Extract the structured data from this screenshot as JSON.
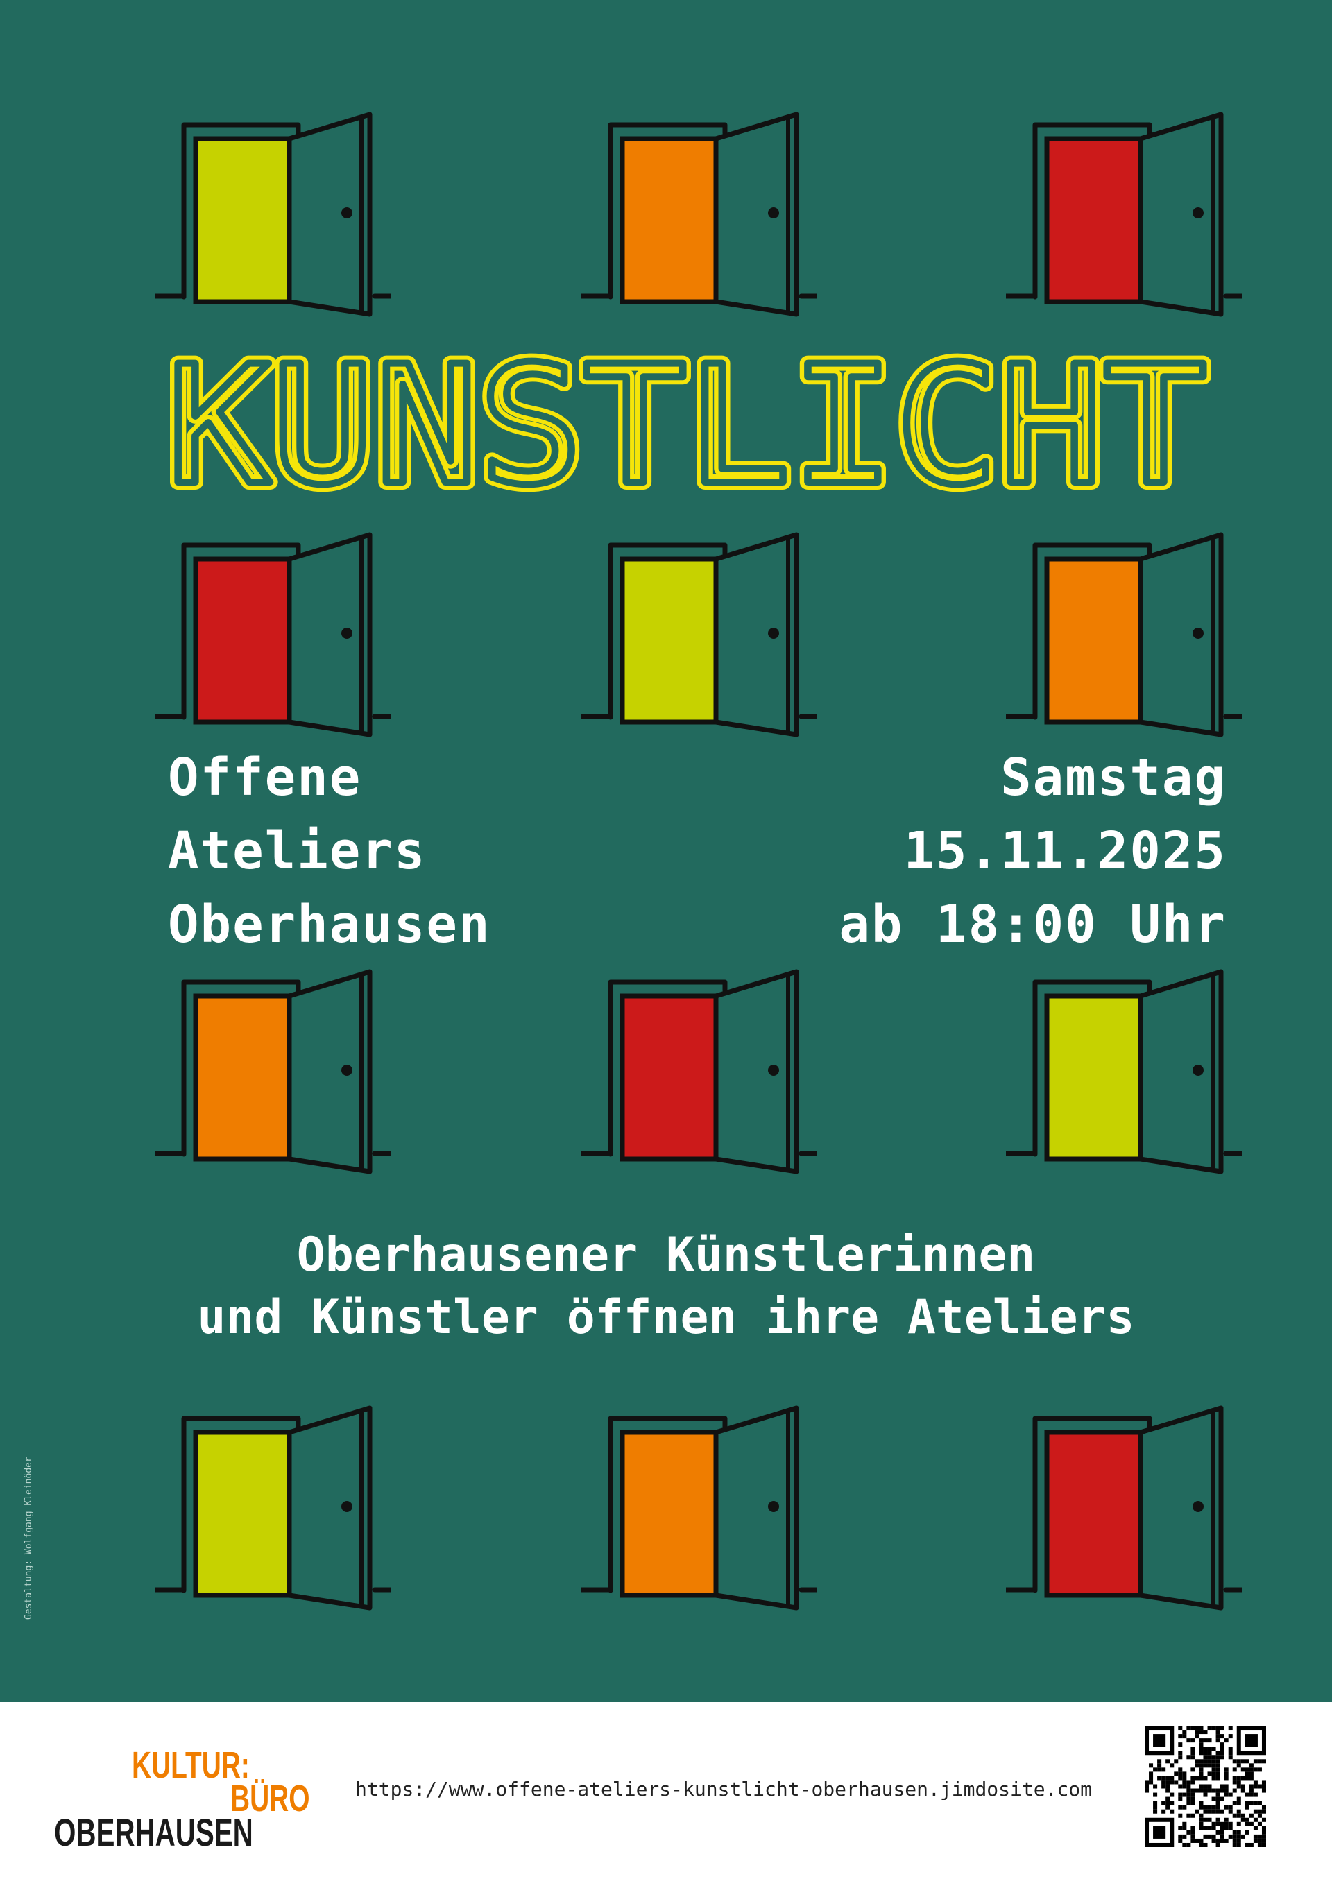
{
  "colors": {
    "background": "#226a5e",
    "title": "#f5e50a",
    "lime": "#c6d200",
    "orange": "#ef7d00",
    "red": "#cc1a1a",
    "outline": "#111111"
  },
  "doors": [
    [
      "lime",
      "orange",
      "red"
    ],
    [
      "red",
      "lime",
      "orange"
    ],
    [
      "orange",
      "red",
      "lime"
    ],
    [
      "lime",
      "orange",
      "red"
    ]
  ],
  "title": "KUNSTLICHT",
  "event": {
    "name_lines": [
      "Offene",
      "Ateliers",
      "Oberhausen"
    ],
    "date_lines": [
      "Samstag",
      "15.11.2025",
      "ab 18:00 Uhr"
    ]
  },
  "tagline": [
    "Oberhausener Künstlerinnen",
    "und Künstler öffnen ihre Ateliers"
  ],
  "credit": "Gestaltung: Wolfgang Kleinöder",
  "footer": {
    "logo": [
      "KULTUR:",
      "BÜRO",
      "OBERHAUSEN"
    ],
    "url": "https://www.offene-ateliers-kunstlicht-oberhausen.jimdosite.com",
    "qr_icon": "qr-code"
  }
}
